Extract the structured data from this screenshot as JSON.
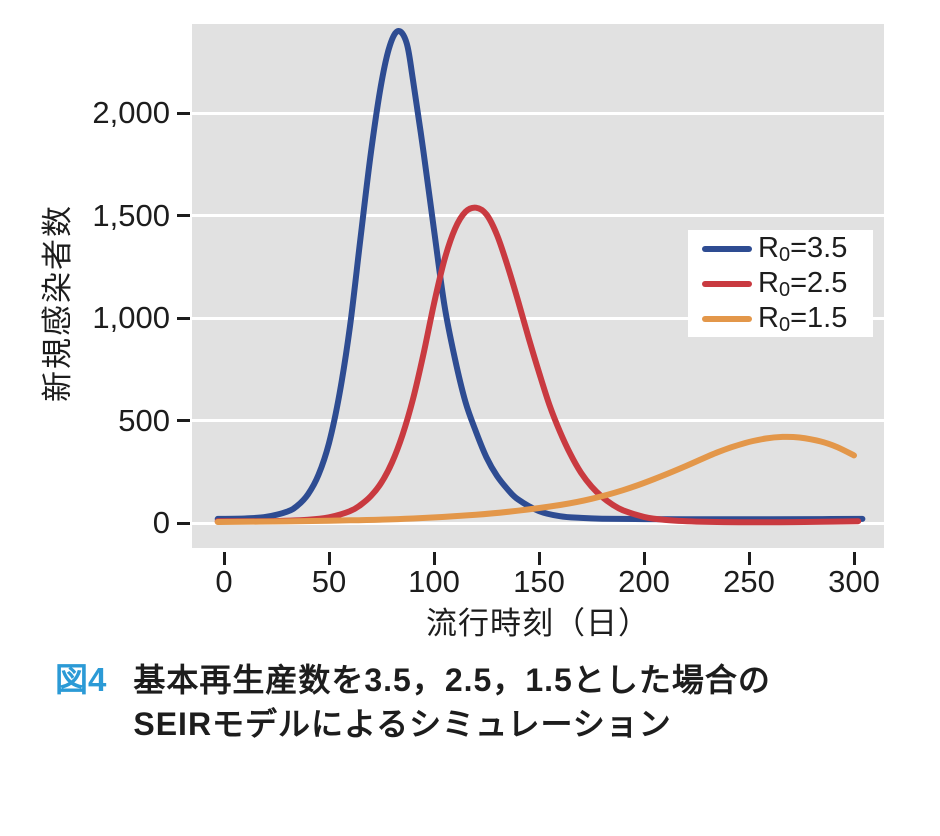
{
  "caption": {
    "tag": "図4",
    "line1": "基本再生産数を3.5，2.5，1.5とした場合の",
    "line2": "SEIRモデルによるシミュレーション"
  },
  "colors": {
    "plot_background": "#e1e1e1",
    "gridline": "#ffffff",
    "text": "#1d1d1d",
    "caption_tag_blue": "#2b9ad6",
    "series_blue": "#2e4c92",
    "series_red": "#c93a40",
    "series_orange": "#e3974a"
  },
  "figure": {
    "legend": {
      "entries": [
        {
          "base": "R",
          "sub": "0",
          "rest": "=3.5",
          "color": "#2e4c92"
        },
        {
          "base": "R",
          "sub": "0",
          "rest": "=2.5",
          "color": "#c93a40"
        },
        {
          "base": "R",
          "sub": "0",
          "rest": "=1.5",
          "color": "#e3974a"
        }
      ]
    }
  },
  "chart_data": {
    "type": "line",
    "title": "",
    "xlabel": "流行時刻（日）",
    "ylabel": "新規感染者数",
    "xlim": [
      -15,
      315
    ],
    "ylim": [
      -120,
      2430
    ],
    "x_ticks": [
      {
        "label": "0",
        "value": 0
      },
      {
        "label": "50",
        "value": 50
      },
      {
        "label": "100",
        "value": 100
      },
      {
        "label": "150",
        "value": 150
      },
      {
        "label": "200",
        "value": 200
      },
      {
        "label": "250",
        "value": 250
      },
      {
        "label": "300",
        "value": 300
      }
    ],
    "y_ticks": [
      {
        "label": "0",
        "value": 0
      },
      {
        "label": "500",
        "value": 500
      },
      {
        "label": "1,000",
        "value": 1000
      },
      {
        "label": "1,500",
        "value": 1500
      },
      {
        "label": "2,000",
        "value": 2000
      }
    ],
    "grid": "horizontal white gridlines on gray panel",
    "legend_position": "upper right",
    "series": [
      {
        "name": "R0=3.5",
        "color": "#2e4c92",
        "peak": {
          "day": 83,
          "value": 2400
        },
        "points": [
          [
            -3,
            20
          ],
          [
            10,
            22
          ],
          [
            20,
            30
          ],
          [
            30,
            55
          ],
          [
            35,
            85
          ],
          [
            40,
            140
          ],
          [
            45,
            235
          ],
          [
            50,
            390
          ],
          [
            55,
            630
          ],
          [
            60,
            960
          ],
          [
            65,
            1390
          ],
          [
            70,
            1810
          ],
          [
            75,
            2150
          ],
          [
            79,
            2330
          ],
          [
            83,
            2400
          ],
          [
            87,
            2340
          ],
          [
            90,
            2160
          ],
          [
            95,
            1810
          ],
          [
            100,
            1430
          ],
          [
            105,
            1060
          ],
          [
            110,
            800
          ],
          [
            115,
            590
          ],
          [
            120,
            445
          ],
          [
            125,
            320
          ],
          [
            130,
            230
          ],
          [
            135,
            165
          ],
          [
            140,
            115
          ],
          [
            150,
            58
          ],
          [
            160,
            33
          ],
          [
            170,
            25
          ],
          [
            180,
            21
          ],
          [
            200,
            19
          ],
          [
            230,
            18
          ],
          [
            260,
            18
          ],
          [
            285,
            19
          ],
          [
            304,
            20
          ]
        ]
      },
      {
        "name": "R0=2.5",
        "color": "#c93a40",
        "peak": {
          "day": 120,
          "value": 1540
        },
        "points": [
          [
            -3,
            9
          ],
          [
            20,
            9
          ],
          [
            40,
            16
          ],
          [
            50,
            28
          ],
          [
            60,
            58
          ],
          [
            65,
            88
          ],
          [
            70,
            132
          ],
          [
            75,
            198
          ],
          [
            80,
            295
          ],
          [
            85,
            430
          ],
          [
            90,
            605
          ],
          [
            95,
            825
          ],
          [
            100,
            1070
          ],
          [
            105,
            1285
          ],
          [
            110,
            1435
          ],
          [
            115,
            1518
          ],
          [
            120,
            1538
          ],
          [
            125,
            1505
          ],
          [
            130,
            1405
          ],
          [
            135,
            1255
          ],
          [
            140,
            1085
          ],
          [
            145,
            905
          ],
          [
            150,
            735
          ],
          [
            155,
            575
          ],
          [
            160,
            445
          ],
          [
            165,
            335
          ],
          [
            170,
            245
          ],
          [
            175,
            178
          ],
          [
            180,
            128
          ],
          [
            185,
            90
          ],
          [
            190,
            62
          ],
          [
            200,
            30
          ],
          [
            210,
            15
          ],
          [
            225,
            7
          ],
          [
            245,
            4
          ],
          [
            265,
            4
          ],
          [
            285,
            6
          ],
          [
            302,
            9
          ]
        ]
      },
      {
        "name": "R0=1.5",
        "color": "#e3974a",
        "peak": {
          "day": 263,
          "value": 420
        },
        "points": [
          [
            -3,
            5
          ],
          [
            30,
            8
          ],
          [
            60,
            13
          ],
          [
            90,
            22
          ],
          [
            120,
            40
          ],
          [
            140,
            60
          ],
          [
            160,
            88
          ],
          [
            175,
            118
          ],
          [
            190,
            160
          ],
          [
            205,
            215
          ],
          [
            220,
            278
          ],
          [
            235,
            345
          ],
          [
            248,
            390
          ],
          [
            258,
            412
          ],
          [
            266,
            420
          ],
          [
            274,
            417
          ],
          [
            284,
            398
          ],
          [
            292,
            370
          ],
          [
            300,
            330
          ]
        ]
      }
    ]
  }
}
